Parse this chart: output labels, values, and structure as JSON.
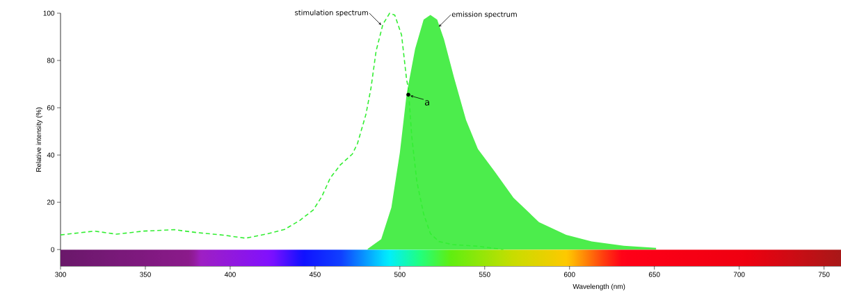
{
  "chart_data": {
    "type": "line",
    "xlabel": "Wavelength (nm)",
    "ylabel": "Relative intensity (%)",
    "xlim": [
      300,
      760
    ],
    "ylim": [
      -7,
      100
    ],
    "xticks": [
      300,
      350,
      400,
      450,
      500,
      550,
      600,
      650,
      700,
      750
    ],
    "yticks": [
      0,
      20,
      40,
      60,
      80,
      100
    ],
    "grid": false,
    "bands": [
      {
        "axis": "y",
        "from": -7,
        "to": 0
      }
    ],
    "series": [
      {
        "name": "stimulation spectrum",
        "line_style": "dashed",
        "color": "#33ee33",
        "x": [
          300,
          320,
          333,
          349,
          367,
          380,
          396,
          409,
          421,
          432,
          441,
          449,
          454,
          459,
          465,
          472,
          475,
          480,
          483,
          486,
          490,
          494,
          497,
          501,
          504,
          505,
          507,
          510,
          514,
          518,
          523,
          531,
          546,
          561
        ],
        "values": [
          6.2,
          7.8,
          6.5,
          7.8,
          8.4,
          7.2,
          6.1,
          4.8,
          6.5,
          8.5,
          12.3,
          16.8,
          22.4,
          30.3,
          35.9,
          40.4,
          44.8,
          57.2,
          68.4,
          84,
          95.3,
          100,
          99.2,
          90.8,
          71.7,
          68.5,
          47.9,
          28.8,
          15.1,
          6.8,
          3.4,
          2.1,
          1.4,
          0
        ]
      },
      {
        "name": "emission spectrum",
        "type": "area",
        "color": "#4ced4c",
        "x": [
          481,
          489,
          495,
          500,
          504,
          509,
          514,
          518,
          522,
          526,
          532,
          539,
          546,
          556,
          567,
          582,
          598,
          613,
          632,
          651
        ],
        "values": [
          0.3,
          4.4,
          17.8,
          41,
          65.8,
          84.9,
          97.3,
          99.3,
          97.3,
          89,
          72.6,
          54.8,
          42.5,
          32.9,
          21.9,
          11.6,
          6.2,
          3.4,
          1.6,
          0.7
        ]
      }
    ],
    "annotations": [
      {
        "text": "a",
        "x": 505,
        "y": 65.5
      }
    ]
  }
}
